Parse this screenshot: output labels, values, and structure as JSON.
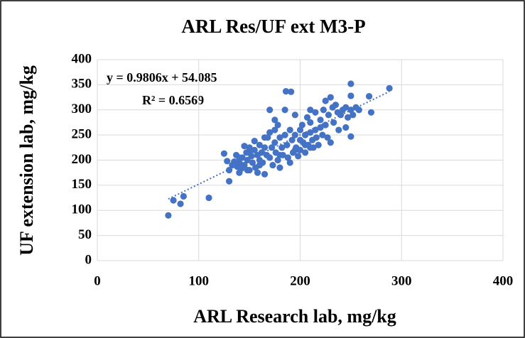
{
  "chart_data": {
    "type": "scatter",
    "title": "ARL Res/UF ext M3-P",
    "x_label": "ARL Research lab, mg/kg",
    "y_label": "UF extension lab, mg/kg",
    "color": "#4472c4",
    "grid": true,
    "xlim": [
      0,
      400
    ],
    "xticks": [
      0,
      100,
      200,
      300,
      400
    ],
    "ylim": [
      0,
      400
    ],
    "yticks": [
      0,
      50,
      100,
      150,
      200,
      250,
      300,
      350,
      400
    ],
    "trendline": {
      "label": "y = 0.9806x + 54.085",
      "r2_label": "R² = 0.6569",
      "slope": 0.9806,
      "intercept": 54.085
    },
    "x": [
      70,
      75,
      82,
      85,
      110,
      130,
      125,
      128,
      130,
      133,
      135,
      137,
      138,
      140,
      140,
      142,
      143,
      145,
      145,
      147,
      148,
      150,
      150,
      152,
      153,
      155,
      155,
      156,
      158,
      158,
      160,
      160,
      162,
      163,
      165,
      165,
      167,
      168,
      170,
      170,
      170,
      172,
      173,
      175,
      175,
      176,
      178,
      178,
      180,
      180,
      182,
      183,
      185,
      185,
      186,
      187,
      188,
      190,
      190,
      191,
      192,
      193,
      195,
      195,
      196,
      198,
      200,
      200,
      200,
      202,
      203,
      205,
      205,
      207,
      208,
      210,
      210,
      210,
      212,
      213,
      215,
      215,
      216,
      218,
      220,
      220,
      222,
      223,
      225,
      225,
      227,
      228,
      230,
      230,
      232,
      233,
      235,
      237,
      238,
      240,
      242,
      245,
      245,
      247,
      250,
      250,
      250,
      250,
      252,
      255,
      258,
      268,
      270,
      288,
      140,
      150,
      165,
      175,
      205,
      210,
      195,
      180,
      160,
      148
    ],
    "y": [
      90,
      120,
      113,
      128,
      125,
      158,
      213,
      198,
      180,
      190,
      197,
      210,
      187,
      175,
      195,
      183,
      205,
      228,
      190,
      215,
      200,
      225,
      180,
      208,
      195,
      238,
      220,
      185,
      210,
      175,
      200,
      230,
      215,
      195,
      225,
      172,
      210,
      245,
      300,
      255,
      205,
      225,
      190,
      260,
      235,
      215,
      270,
      200,
      185,
      245,
      225,
      210,
      300,
      250,
      337,
      230,
      205,
      195,
      260,
      336,
      240,
      215,
      290,
      250,
      225,
      208,
      240,
      260,
      220,
      270,
      235,
      250,
      215,
      285,
      230,
      300,
      255,
      275,
      240,
      225,
      295,
      260,
      245,
      230,
      265,
      280,
      250,
      300,
      318,
      270,
      245,
      290,
      325,
      235,
      305,
      275,
      310,
      295,
      260,
      290,
      300,
      305,
      265,
      285,
      352,
      328,
      300,
      247,
      290,
      305,
      300,
      327,
      295,
      343,
      205,
      215,
      245,
      280,
      230,
      225,
      220,
      210,
      190,
      180
    ]
  }
}
